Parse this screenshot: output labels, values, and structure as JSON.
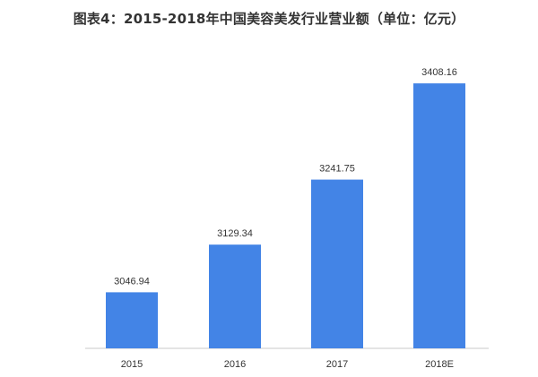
{
  "chart_data": {
    "type": "bar",
    "title": "图表4：2015-2018年中国美容美发行业营业额（单位：亿元）",
    "categories": [
      "2015",
      "2016",
      "2017",
      "2018E"
    ],
    "values": [
      3046.94,
      3129.34,
      3241.75,
      3408.16
    ],
    "value_labels": [
      "3046.94",
      "3129.34",
      "3241.75",
      "3408.16"
    ],
    "xlabel": "",
    "ylabel": "",
    "ylim": [
      2950,
      3430
    ],
    "grid": false,
    "legend": "none",
    "colors": {
      "bar": "#4384e6",
      "text": "#333333",
      "axis": "#c8c8c8"
    }
  }
}
